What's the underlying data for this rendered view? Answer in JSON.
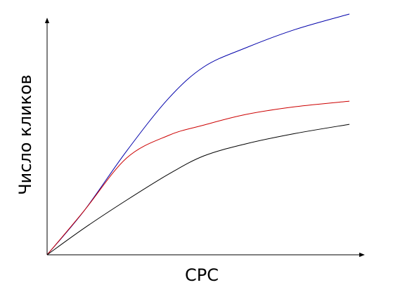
{
  "chart_data": {
    "type": "line",
    "x_label": "CPC",
    "y_label": "Число кликов",
    "x": [
      0,
      12.3,
      26.3,
      40.2,
      51.9,
      65.8,
      82.1,
      100
    ],
    "xlim": [
      0,
      100
    ],
    "ylim": [
      0,
      100
    ],
    "series": [
      {
        "color": "#0000aa",
        "values": [
          0,
          18.4,
          43.1,
          65.0,
          78.1,
          86.0,
          93.6,
          100
        ]
      },
      {
        "color": "#cc0000",
        "values": [
          0,
          18.4,
          40.2,
          49.6,
          53.9,
          58.3,
          61.5,
          63.8
        ]
      },
      {
        "color": "#000000",
        "values": [
          0,
          11.1,
          22.7,
          33.5,
          41.1,
          46.1,
          50.4,
          54.2
        ]
      }
    ]
  }
}
